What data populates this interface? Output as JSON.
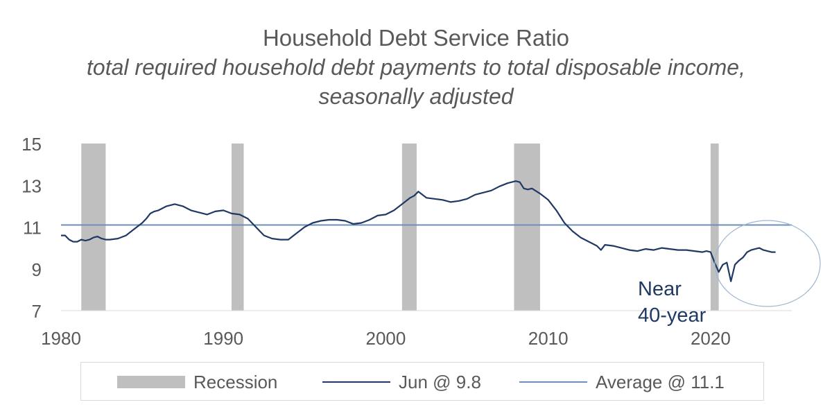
{
  "chart_data": {
    "type": "line",
    "title": "Household Debt Service Ratio",
    "subtitle": "total required household debt payments to total disposable income, seasonally adjusted",
    "ylim": [
      7,
      15
    ],
    "yticks": [
      15,
      13,
      11,
      9,
      7
    ],
    "xlim": [
      1980,
      2025
    ],
    "xticks": [
      1980,
      1990,
      2000,
      2010,
      2020
    ],
    "grid": false,
    "legend_position": "bottom",
    "colors": {
      "recession": "#bfbfbf",
      "series": "#1f3864",
      "average": "#6b8fb5",
      "annotation": "#1f3864",
      "highlight_circle": "#9fb6d0"
    },
    "recessions": [
      {
        "start": 1981.25,
        "end": 1982.75
      },
      {
        "start": 1990.5,
        "end": 1991.25
      },
      {
        "start": 2001.0,
        "end": 2001.9
      },
      {
        "start": 2007.9,
        "end": 2009.5
      },
      {
        "start": 2020.0,
        "end": 2020.5
      }
    ],
    "average": {
      "label": "Average @ 11.1",
      "value": 11.1
    },
    "series": [
      {
        "name": "Jun @ 9.8",
        "x": [
          1980.0,
          1980.25,
          1980.5,
          1980.75,
          1981.0,
          1981.25,
          1981.5,
          1981.75,
          1982.0,
          1982.25,
          1982.5,
          1982.75,
          1983.0,
          1983.5,
          1984.0,
          1984.5,
          1985.0,
          1985.25,
          1985.5,
          1985.75,
          1986.0,
          1986.5,
          1987.0,
          1987.25,
          1987.5,
          1987.75,
          1988.0,
          1988.5,
          1989.0,
          1989.5,
          1990.0,
          1990.5,
          1991.0,
          1991.5,
          1992.0,
          1992.5,
          1993.0,
          1993.5,
          1994.0,
          1994.5,
          1995.0,
          1995.5,
          1996.0,
          1996.5,
          1997.0,
          1997.5,
          1998.0,
          1998.5,
          1999.0,
          1999.5,
          2000.0,
          2000.5,
          2001.0,
          2001.5,
          2001.75,
          2002.0,
          2002.5,
          2003.0,
          2003.5,
          2004.0,
          2004.5,
          2005.0,
          2005.5,
          2006.0,
          2006.5,
          2007.0,
          2007.5,
          2008.0,
          2008.25,
          2008.5,
          2008.75,
          2009.0,
          2009.5,
          2010.0,
          2010.5,
          2011.0,
          2011.5,
          2012.0,
          2012.5,
          2013.0,
          2013.25,
          2013.5,
          2014.0,
          2014.5,
          2015.0,
          2015.5,
          2016.0,
          2016.5,
          2017.0,
          2017.5,
          2018.0,
          2018.5,
          2019.0,
          2019.5,
          2019.75,
          2020.0,
          2020.25,
          2020.5,
          2020.75,
          2021.0,
          2021.25,
          2021.5,
          2021.75,
          2022.0,
          2022.25,
          2022.5,
          2022.75,
          2023.0,
          2023.25,
          2023.5,
          2023.75,
          2024.0
        ],
        "y": [
          10.6,
          10.6,
          10.4,
          10.3,
          10.3,
          10.4,
          10.35,
          10.4,
          10.5,
          10.55,
          10.45,
          10.4,
          10.4,
          10.45,
          10.6,
          10.9,
          11.2,
          11.4,
          11.65,
          11.75,
          11.8,
          12.0,
          12.1,
          12.05,
          12.0,
          11.9,
          11.8,
          11.7,
          11.6,
          11.75,
          11.8,
          11.65,
          11.6,
          11.4,
          11.0,
          10.6,
          10.45,
          10.4,
          10.4,
          10.7,
          11.0,
          11.2,
          11.3,
          11.35,
          11.35,
          11.3,
          11.15,
          11.2,
          11.35,
          11.55,
          11.6,
          11.8,
          12.1,
          12.4,
          12.5,
          12.7,
          12.4,
          12.35,
          12.3,
          12.2,
          12.25,
          12.35,
          12.55,
          12.65,
          12.75,
          12.95,
          13.1,
          13.2,
          13.15,
          12.85,
          12.8,
          12.85,
          12.6,
          12.3,
          11.8,
          11.2,
          10.8,
          10.5,
          10.3,
          10.1,
          9.9,
          10.15,
          10.1,
          10.0,
          9.9,
          9.85,
          9.95,
          9.9,
          10.0,
          9.95,
          9.9,
          9.9,
          9.85,
          9.8,
          9.85,
          9.8,
          9.3,
          8.85,
          9.2,
          9.3,
          8.4,
          9.2,
          9.4,
          9.55,
          9.8,
          9.9,
          9.95,
          10.0,
          9.9,
          9.85,
          9.8,
          9.8
        ]
      }
    ],
    "annotation": {
      "text_line1": "Near",
      "text_line2": "40-year"
    }
  },
  "legend": {
    "recession_label": "Recession",
    "series_label": "Jun @ 9.8",
    "average_label": "Average @ 11.1"
  }
}
